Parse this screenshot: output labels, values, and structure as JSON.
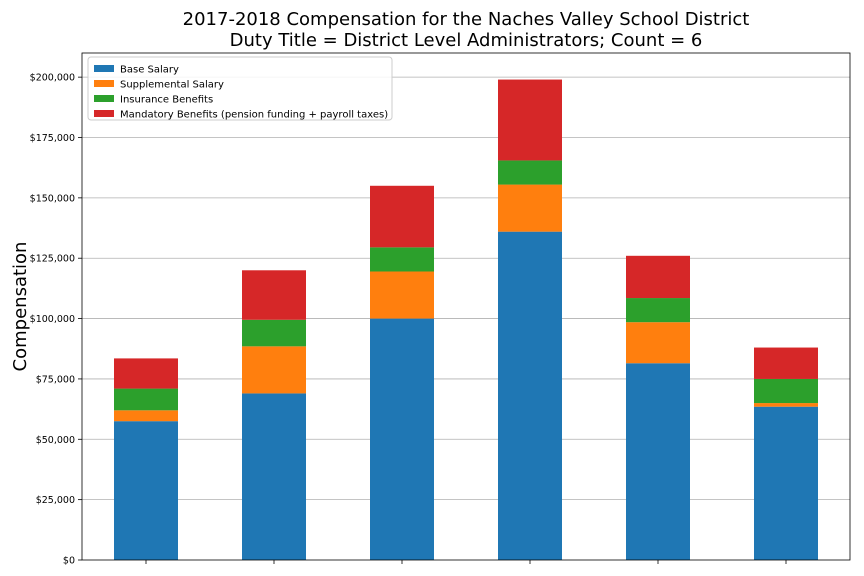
{
  "chart_data": {
    "type": "bar",
    "stacked": true,
    "title": [
      "2017-2018 Compensation for the Naches Valley School District",
      "Duty Title = District Level Administrators; Count = 6"
    ],
    "xlabel": "",
    "ylabel": "Compensation",
    "ylim": [
      0,
      210000
    ],
    "yticks": [
      0,
      25000,
      50000,
      75000,
      100000,
      125000,
      150000,
      175000,
      200000
    ],
    "ytick_labels": [
      "$0",
      "$25,000",
      "$50,000",
      "$75,000",
      "$100,000",
      "$125,000",
      "$150,000",
      "$175,000",
      "$200,000"
    ],
    "grid": "horizontal",
    "legend_position": "top-left",
    "categories": [
      "",
      "",
      "",
      "",
      "",
      ""
    ],
    "series": [
      {
        "name": "Base Salary",
        "color": "#1f77b4",
        "values": [
          57500,
          69000,
          100000,
          136000,
          81500,
          63500
        ]
      },
      {
        "name": "Supplemental Salary",
        "color": "#ff7f0e",
        "values": [
          4500,
          19500,
          19500,
          19500,
          17000,
          1500
        ]
      },
      {
        "name": "Insurance Benefits",
        "color": "#2ca02c",
        "values": [
          9000,
          11000,
          10000,
          10000,
          10000,
          10000
        ]
      },
      {
        "name": "Mandatory Benefits (pension funding + payroll taxes)",
        "color": "#d62728",
        "values": [
          12500,
          20500,
          25500,
          33500,
          17500,
          13000
        ]
      }
    ]
  }
}
